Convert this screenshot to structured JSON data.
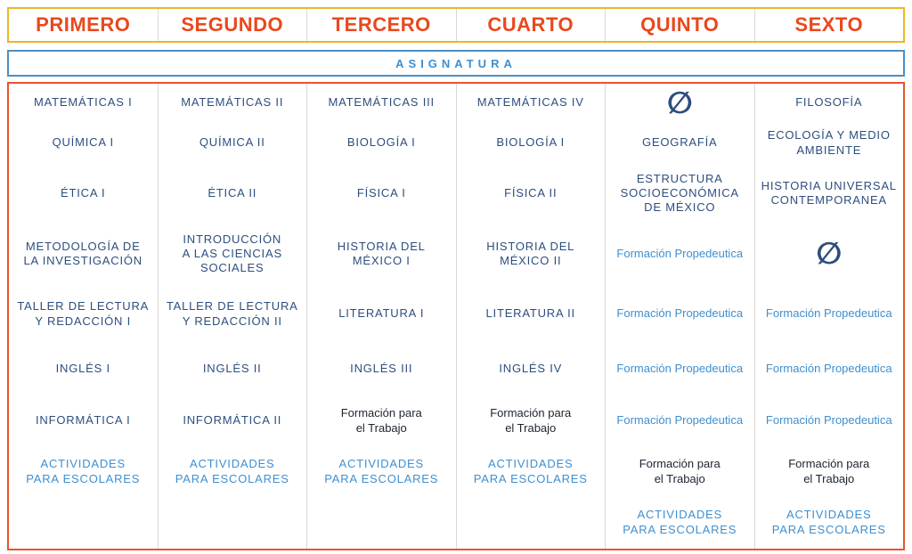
{
  "semesters": [
    "PRIMERO",
    "SEGUNDO",
    "TERCERO",
    "CUARTO",
    "QUINTO",
    "SEXTO"
  ],
  "asignatura_label": "ASIGNATURA",
  "symbols": {
    "none": "∅"
  },
  "colors": {
    "header-text": "#E8491D",
    "header-border": "#F0B42A",
    "asignatura-blue": "#3E8FD0",
    "asignatura-border": "#4A90C8",
    "body-border": "#E8552B",
    "subject-navy": "#2D4E7E",
    "light-blue": "#3E8FD0",
    "trabajo-black": "#1C2430",
    "separator": "#D8D8D8"
  },
  "grid": {
    "columns": [
      {
        "semester": "PRIMERO",
        "cells": [
          {
            "text": "MATEMÁTICAS I",
            "kind": "subject"
          },
          {
            "text": "QUÍMICA I",
            "kind": "subject"
          },
          {
            "text": "ÉTICA I",
            "kind": "subject"
          },
          {
            "text": "METODOLOGÍA DE\nLA INVESTIGACIÓN",
            "kind": "subject"
          },
          {
            "text": "TALLER DE LECTURA\nY REDACCIÓN I",
            "kind": "subject"
          },
          {
            "text": "INGLÉS I",
            "kind": "subject"
          },
          {
            "text": "INFORMÁTICA I",
            "kind": "subject"
          },
          {
            "text": "ACTIVIDADES\nPARA ESCOLARES",
            "kind": "activities"
          },
          {
            "text": "",
            "kind": "blank"
          }
        ]
      },
      {
        "semester": "SEGUNDO",
        "cells": [
          {
            "text": "MATEMÁTICAS II",
            "kind": "subject"
          },
          {
            "text": "QUÍMICA II",
            "kind": "subject"
          },
          {
            "text": "ÉTICA II",
            "kind": "subject"
          },
          {
            "text": "INTRODUCCIÓN\nA LAS CIENCIAS\nSOCIALES",
            "kind": "subject"
          },
          {
            "text": "TALLER DE LECTURA\nY REDACCIÓN II",
            "kind": "subject"
          },
          {
            "text": "INGLÉS II",
            "kind": "subject"
          },
          {
            "text": "INFORMÁTICA II",
            "kind": "subject"
          },
          {
            "text": "ACTIVIDADES\nPARA ESCOLARES",
            "kind": "activities"
          },
          {
            "text": "",
            "kind": "blank"
          }
        ]
      },
      {
        "semester": "TERCERO",
        "cells": [
          {
            "text": "MATEMÁTICAS III",
            "kind": "subject"
          },
          {
            "text": "BIOLOGÍA I",
            "kind": "subject"
          },
          {
            "text": "FÍSICA I",
            "kind": "subject"
          },
          {
            "text": "HISTORIA DEL\nMÉXICO I",
            "kind": "subject"
          },
          {
            "text": "LITERATURA I",
            "kind": "subject"
          },
          {
            "text": "INGLÉS III",
            "kind": "subject"
          },
          {
            "text": "Formación para\nel Trabajo",
            "kind": "trabajo"
          },
          {
            "text": "ACTIVIDADES\nPARA ESCOLARES",
            "kind": "activities"
          },
          {
            "text": "",
            "kind": "blank"
          }
        ]
      },
      {
        "semester": "CUARTO",
        "cells": [
          {
            "text": "MATEMÁTICAS IV",
            "kind": "subject"
          },
          {
            "text": "BIOLOGÍA I",
            "kind": "subject"
          },
          {
            "text": "FÍSICA II",
            "kind": "subject"
          },
          {
            "text": "HISTORIA DEL\nMÉXICO II",
            "kind": "subject"
          },
          {
            "text": "LITERATURA II",
            "kind": "subject"
          },
          {
            "text": "INGLÉS IV",
            "kind": "subject"
          },
          {
            "text": "Formación para\nel Trabajo",
            "kind": "trabajo"
          },
          {
            "text": "ACTIVIDADES\nPARA ESCOLARES",
            "kind": "activities"
          },
          {
            "text": "",
            "kind": "blank"
          }
        ]
      },
      {
        "semester": "QUINTO",
        "cells": [
          {
            "text": "∅",
            "kind": "none-symbol"
          },
          {
            "text": "GEOGRAFÍA",
            "kind": "subject"
          },
          {
            "text": "ESTRUCTURA\nSOCIOECONÓMICA\nDE MÉXICO",
            "kind": "subject"
          },
          {
            "text": "Formación Propedeutica",
            "kind": "propedeutica"
          },
          {
            "text": "Formación Propedeutica",
            "kind": "propedeutica"
          },
          {
            "text": "Formación Propedeutica",
            "kind": "propedeutica"
          },
          {
            "text": "Formación Propedeutica",
            "kind": "propedeutica"
          },
          {
            "text": "Formación para\nel Trabajo",
            "kind": "trabajo"
          },
          {
            "text": "ACTIVIDADES\nPARA ESCOLARES",
            "kind": "activities"
          }
        ]
      },
      {
        "semester": "SEXTO",
        "cells": [
          {
            "text": "FILOSOFÍA",
            "kind": "subject"
          },
          {
            "text": "ECOLOGÍA Y MEDIO\nAMBIENTE",
            "kind": "subject"
          },
          {
            "text": "HISTORIA UNIVERSAL\nCONTEMPORANEA",
            "kind": "subject"
          },
          {
            "text": "∅",
            "kind": "none-symbol"
          },
          {
            "text": "Formación Propedeutica",
            "kind": "propedeutica"
          },
          {
            "text": "Formación Propedeutica",
            "kind": "propedeutica"
          },
          {
            "text": "Formación Propedeutica",
            "kind": "propedeutica"
          },
          {
            "text": "Formación para\nel Trabajo",
            "kind": "trabajo"
          },
          {
            "text": "ACTIVIDADES\nPARA ESCOLARES",
            "kind": "activities"
          }
        ]
      }
    ]
  }
}
